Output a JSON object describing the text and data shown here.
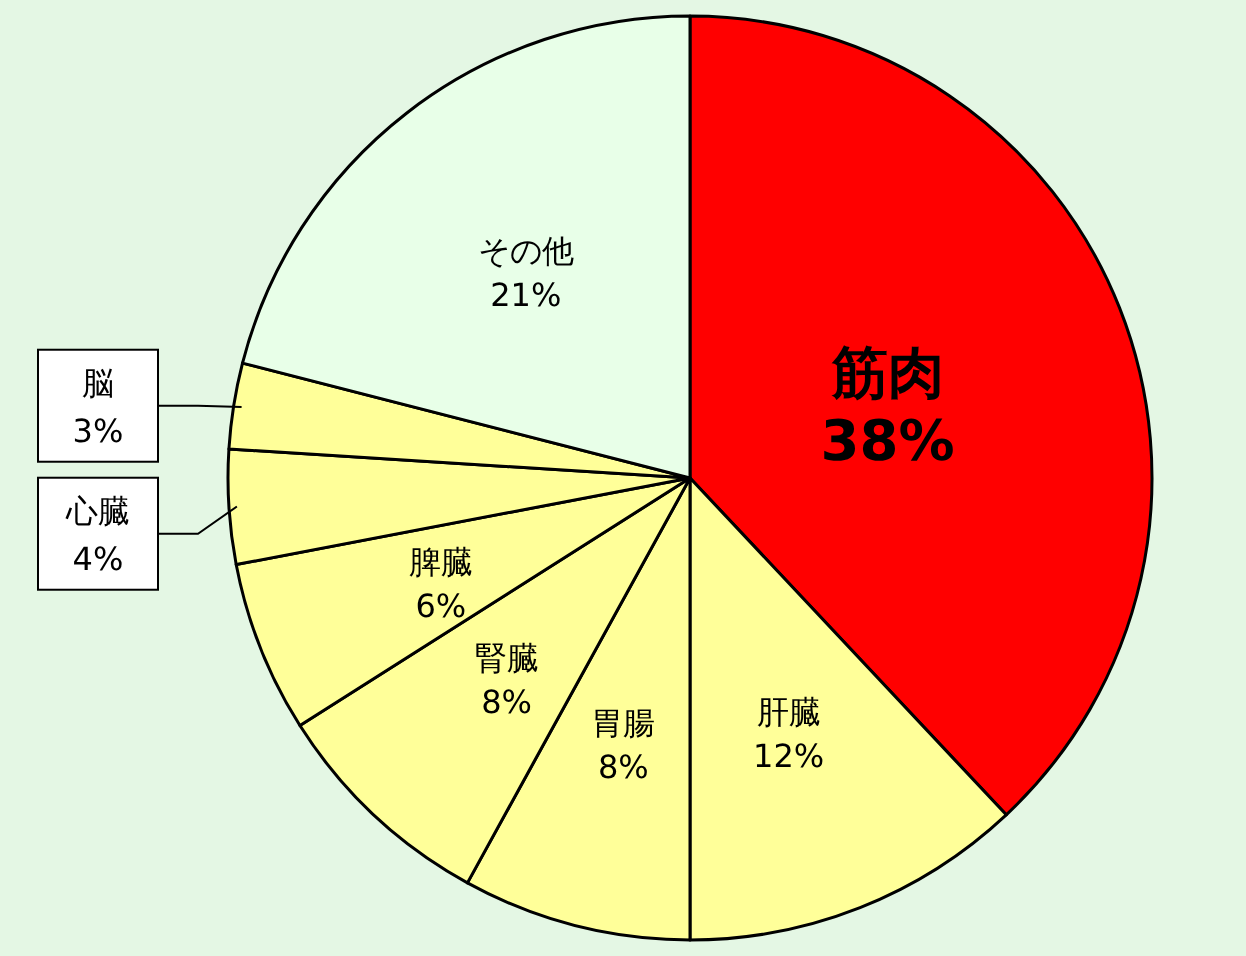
{
  "chart_data": {
    "type": "pie",
    "categories": [
      "筋肉",
      "肝臓",
      "胃腸",
      "腎臓",
      "脾臓",
      "心臓",
      "脳",
      "その他"
    ],
    "values": [
      38,
      12,
      8,
      8,
      6,
      4,
      3,
      21
    ],
    "colors": [
      "#ff0000",
      "#ffff99",
      "#ffff99",
      "#ffff99",
      "#ffff99",
      "#ffff99",
      "#ffff99",
      "#e8ffe8"
    ],
    "value_labels": [
      "38%",
      "12%",
      "8%",
      "8%",
      "6%",
      "4%",
      "3%",
      "21%"
    ]
  }
}
